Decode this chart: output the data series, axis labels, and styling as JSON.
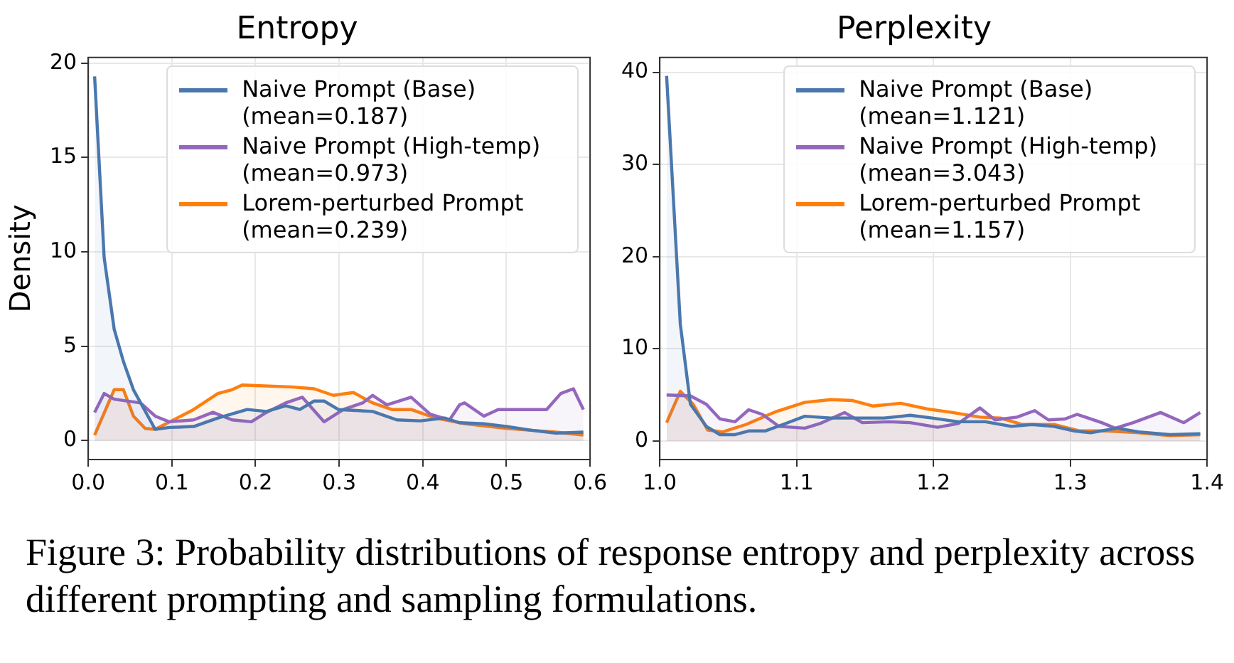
{
  "chart_data": [
    {
      "type": "area",
      "title": "Entropy",
      "ylabel": "Density",
      "xlim": [
        0,
        0.6
      ],
      "xticks": [
        {
          "value": 0,
          "label": "0.0"
        },
        0.1,
        0.2,
        0.3,
        0.4,
        0.5,
        0.6
      ],
      "ylim": [
        -1,
        20.3
      ],
      "yticks": [
        0,
        5,
        10,
        15,
        20
      ],
      "grid": true,
      "legend": "top right",
      "annotations": [
        "Figure 3: Probability distributions of response entropy and perplexity across different prompting and sampling formulations."
      ],
      "series": [
        {
          "name": "Naive Prompt (Base) (mean=0.187)",
          "color": "#4a78ae",
          "x": [
            0.0076,
            0.019,
            0.031,
            0.042,
            0.054,
            0.08,
            0.097,
            0.126,
            0.155,
            0.19,
            0.213,
            0.236,
            0.253,
            0.27,
            0.282,
            0.299,
            0.34,
            0.369,
            0.397,
            0.426,
            0.444,
            0.473,
            0.501,
            0.53,
            0.559,
            0.592
          ],
          "values": [
            19.3,
            9.7,
            5.9,
            4.2,
            2.7,
            0.6,
            0.7,
            0.75,
            1.2,
            1.65,
            1.55,
            1.85,
            1.65,
            2.1,
            2.1,
            1.65,
            1.55,
            1.1,
            1.05,
            1.2,
            0.95,
            0.9,
            0.75,
            0.55,
            0.4,
            0.45
          ]
        },
        {
          "name": "Naive Prompt (High-temp) (mean=0.973)",
          "color": "#9467bd",
          "x": [
            0.0076,
            0.019,
            0.031,
            0.0625,
            0.08,
            0.097,
            0.126,
            0.149,
            0.172,
            0.195,
            0.213,
            0.236,
            0.256,
            0.282,
            0.305,
            0.328,
            0.34,
            0.357,
            0.386,
            0.409,
            0.432,
            0.444,
            0.45,
            0.473,
            0.49,
            0.525,
            0.548,
            0.565,
            0.58,
            0.592
          ],
          "values": [
            1.5,
            2.5,
            2.2,
            2.0,
            1.3,
            1.0,
            1.1,
            1.5,
            1.1,
            1.0,
            1.5,
            2.0,
            2.3,
            1.0,
            1.65,
            2.0,
            2.4,
            1.9,
            2.3,
            1.4,
            1.1,
            1.9,
            2.0,
            1.3,
            1.65,
            1.65,
            1.65,
            2.5,
            2.75,
            1.65
          ]
        },
        {
          "name": "Lorem-perturbed Prompt (mean=0.239)",
          "color": "#ff7f0e",
          "x": [
            0.0076,
            0.031,
            0.042,
            0.054,
            0.068,
            0.08,
            0.126,
            0.155,
            0.172,
            0.184,
            0.242,
            0.27,
            0.293,
            0.317,
            0.34,
            0.363,
            0.386,
            0.415,
            0.45,
            0.501,
            0.559,
            0.592
          ],
          "values": [
            0.3,
            2.7,
            2.7,
            1.3,
            0.65,
            0.6,
            1.65,
            2.5,
            2.7,
            2.95,
            2.85,
            2.75,
            2.4,
            2.55,
            2.0,
            1.65,
            1.65,
            1.2,
            0.9,
            0.65,
            0.45,
            0.3
          ]
        }
      ]
    },
    {
      "type": "area",
      "title": "Perplexity",
      "xlim": [
        1.0,
        1.4
      ],
      "xticks": [
        {
          "value": 1.0,
          "label": "1.0"
        },
        1.1,
        1.2,
        1.3,
        1.4
      ],
      "ylim": [
        -2,
        41.6
      ],
      "yticks": [
        0,
        10,
        20,
        30,
        40
      ],
      "grid": true,
      "legend": "top right",
      "series": [
        {
          "name": "Naive Prompt (Base) (mean=1.121)",
          "color": "#4a78ae",
          "x": [
            1.005,
            1.015,
            1.0224,
            1.034,
            1.044,
            1.055,
            1.065,
            1.077,
            1.09,
            1.106,
            1.125,
            1.148,
            1.164,
            1.183,
            1.199,
            1.218,
            1.238,
            1.257,
            1.272,
            1.288,
            1.303,
            1.315,
            1.334,
            1.35,
            1.373,
            1.395
          ],
          "values": [
            39.6,
            12.7,
            4.0,
            1.6,
            0.7,
            0.7,
            1.1,
            1.1,
            1.8,
            2.7,
            2.5,
            2.5,
            2.5,
            2.8,
            2.5,
            2.1,
            2.1,
            1.6,
            1.8,
            1.6,
            1.1,
            0.9,
            1.4,
            1.0,
            0.7,
            0.8
          ]
        },
        {
          "name": "Naive Prompt (High-temp) (mean=3.043)",
          "color": "#9467bd",
          "x": [
            1.005,
            1.0224,
            1.034,
            1.044,
            1.055,
            1.065,
            1.075,
            1.087,
            1.106,
            1.117,
            1.135,
            1.148,
            1.168,
            1.183,
            1.203,
            1.218,
            1.234,
            1.245,
            1.261,
            1.274,
            1.284,
            1.296,
            1.305,
            1.323,
            1.333,
            1.346,
            1.366,
            1.383,
            1.395
          ],
          "values": [
            5.0,
            4.9,
            4.0,
            2.4,
            2.1,
            3.4,
            2.9,
            1.6,
            1.4,
            1.9,
            3.1,
            2.0,
            2.1,
            2.0,
            1.5,
            1.9,
            3.6,
            2.3,
            2.6,
            3.3,
            2.3,
            2.4,
            2.9,
            2.0,
            1.4,
            2.0,
            3.1,
            2.0,
            3.1
          ]
        },
        {
          "name": "Lorem-perturbed Prompt (mean=1.157)",
          "color": "#ff7f0e",
          "x": [
            1.005,
            1.015,
            1.0244,
            1.035,
            1.046,
            1.063,
            1.085,
            1.106,
            1.125,
            1.141,
            1.156,
            1.176,
            1.195,
            1.214,
            1.234,
            1.249,
            1.265,
            1.288,
            1.307,
            1.327,
            1.35,
            1.373,
            1.395
          ],
          "values": [
            2.0,
            5.4,
            4.0,
            1.2,
            1.0,
            1.8,
            3.2,
            4.2,
            4.5,
            4.4,
            3.8,
            4.1,
            3.5,
            3.1,
            2.6,
            2.5,
            1.8,
            1.8,
            1.1,
            1.1,
            0.9,
            0.6,
            0.7
          ]
        }
      ]
    }
  ]
}
